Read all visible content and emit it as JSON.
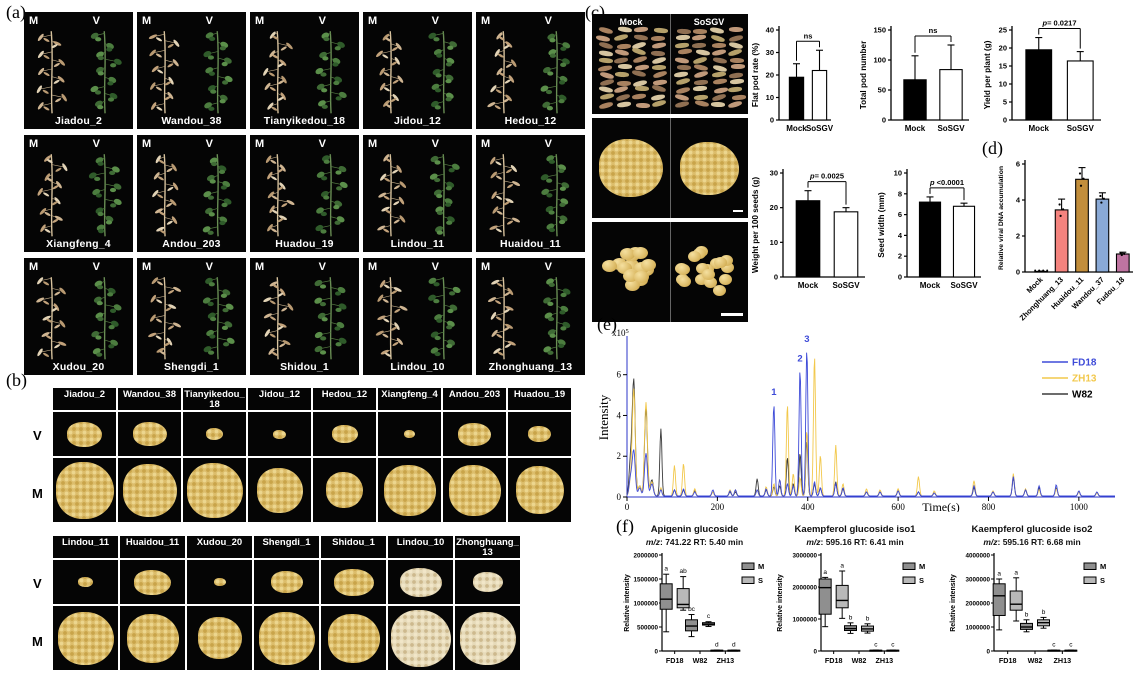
{
  "figure": {
    "panel_labels": {
      "a": "(a)",
      "b": "(b)",
      "c": "(c)",
      "d": "(d)",
      "e": "(e)",
      "f": "(f)"
    }
  },
  "panel_a": {
    "tile_labels": {
      "left": "M",
      "right": "V"
    },
    "rows": [
      [
        "Jiadou_2",
        "Wandou_38",
        "Tianyikedou_18",
        "Jidou_12",
        "Hedou_12"
      ],
      [
        "Xiangfeng_4",
        "Andou_203",
        "Huadou_19",
        "Lindou_11",
        "Huaidou_11"
      ],
      [
        "Xudou_20",
        "Shengdi_1",
        "Shidou_1",
        "Lindou_10",
        "Zhonghuang_13"
      ]
    ]
  },
  "panel_b": {
    "row_labels": [
      "V",
      "M"
    ],
    "blocks": [
      {
        "cultivars": [
          "Jiadou_2",
          "Wandou_38",
          "Tianyikedou_18",
          "Jidou_12",
          "Hedou_12",
          "Xiangfeng_4",
          "Andou_203",
          "Huadou_19"
        ],
        "v_scale": [
          0.62,
          0.6,
          0.3,
          0.22,
          0.45,
          0.2,
          0.58,
          0.4
        ],
        "m_scale": [
          0.98,
          0.92,
          0.95,
          0.78,
          0.62,
          0.88,
          0.88,
          0.82
        ],
        "v_tone": [
          "gold",
          "gold",
          "gold",
          "gold",
          "gold",
          "gold",
          "gold",
          "gold"
        ],
        "m_tone": [
          "gold",
          "gold",
          "gold",
          "gold",
          "gold",
          "gold",
          "gold",
          "gold"
        ]
      },
      {
        "cultivars": [
          "Lindou_11",
          "Huaidou_11",
          "Xudou_20",
          "Shengdi_1",
          "Shidou_1",
          "Lindou_10",
          "Zhonghuang_13"
        ],
        "v_scale": [
          0.25,
          0.62,
          0.2,
          0.55,
          0.68,
          0.72,
          0.5
        ],
        "m_scale": [
          0.92,
          0.85,
          0.72,
          0.92,
          0.85,
          0.98,
          0.92
        ],
        "v_tone": [
          "gold",
          "gold",
          "gold",
          "gold",
          "gold",
          "pale",
          "pale"
        ],
        "m_tone": [
          "gold",
          "gold",
          "gold",
          "gold",
          "gold",
          "pale",
          "pale"
        ]
      }
    ]
  },
  "panel_c": {
    "image_labels": [
      "Mock",
      "SoSGV"
    ]
  },
  "chart_data": [
    {
      "id": "flat_pod_rate",
      "type": "bar",
      "ylabel": "Flat pod rate (%)",
      "categories": [
        "Mock",
        "SoSGV"
      ],
      "values": [
        19,
        22
      ],
      "errors": [
        6,
        9
      ],
      "ylim": [
        0,
        40
      ],
      "yticks": [
        0,
        10,
        20,
        30,
        40
      ],
      "sig": "ns",
      "bar_colors": [
        "#000000",
        "#ffffff"
      ]
    },
    {
      "id": "total_pod_number",
      "type": "bar",
      "ylabel": "Total pod number",
      "categories": [
        "Mock",
        "SoSGV"
      ],
      "values": [
        67,
        84
      ],
      "errors": [
        40,
        41
      ],
      "ylim": [
        0,
        150
      ],
      "yticks": [
        0,
        50,
        100,
        150
      ],
      "sig": "ns",
      "bar_colors": [
        "#000000",
        "#ffffff"
      ]
    },
    {
      "id": "yield_per_plant",
      "type": "bar",
      "ylabel": "Yield per plant (g)",
      "categories": [
        "Mock",
        "SoSGV"
      ],
      "values": [
        19.5,
        16.4
      ],
      "errors": [
        3.4,
        2.6
      ],
      "ylim": [
        0,
        25
      ],
      "yticks": [
        0,
        5,
        10,
        15,
        20,
        25
      ],
      "sig": "p= 0.0217",
      "bar_colors": [
        "#000000",
        "#ffffff"
      ]
    },
    {
      "id": "weight_per_100_seeds",
      "type": "bar",
      "ylabel": "Weight per 100 seeds (g)",
      "categories": [
        "Mock",
        "SoSGV"
      ],
      "values": [
        22,
        18.8
      ],
      "errors": [
        2.9,
        1.2
      ],
      "ylim": [
        0,
        30
      ],
      "yticks": [
        0,
        10,
        20,
        30
      ],
      "sig": "p= 0.0025",
      "bar_colors": [
        "#000000",
        "#ffffff"
      ]
    },
    {
      "id": "seed_width",
      "type": "bar",
      "ylabel": "Seed width (mm)",
      "categories": [
        "Mock",
        "SoSGV"
      ],
      "values": [
        7.2,
        6.8
      ],
      "errors": [
        0.5,
        0.3
      ],
      "ylim": [
        0,
        10
      ],
      "yticks": [
        0,
        2,
        4,
        6,
        8,
        10
      ],
      "sig": "p <0.0001",
      "bar_colors": [
        "#000000",
        "#ffffff"
      ]
    },
    {
      "id": "viral_dna",
      "type": "bar",
      "ylabel": "Relative viral DNA accumulation",
      "categories": [
        "Mock",
        "Zhonghuang_13",
        "Huaidou_11",
        "Wandou_37",
        "Fudou_18"
      ],
      "values": [
        0.03,
        3.45,
        5.15,
        4.05,
        1.0
      ],
      "errors": [
        0.02,
        0.6,
        0.65,
        0.35,
        0.1
      ],
      "ylim": [
        0,
        6
      ],
      "yticks": [
        0,
        2,
        4,
        6
      ],
      "bar_colors": [
        "#222222",
        "#F4837E",
        "#C28E3C",
        "#89A9D6",
        "#BF74A1"
      ],
      "rotate_labels": true,
      "dots": true,
      "err_both": true
    },
    {
      "id": "chromatogram",
      "type": "line",
      "xlabel": "Time(s)",
      "ylabel": "Intensity",
      "y_scale_label": "x10",
      "y_scale_exp": "5",
      "xlim": [
        0,
        1080
      ],
      "xticks": [
        0,
        200,
        400,
        600,
        800,
        1000
      ],
      "ylim": [
        0,
        7.8
      ],
      "yticks": [
        0,
        2,
        4,
        6
      ],
      "series": [
        {
          "name": "FD18",
          "color": "#3E4BD8"
        },
        {
          "name": "ZH13",
          "color": "#F2C84B"
        },
        {
          "name": "W82",
          "color": "#3B3B3B"
        }
      ],
      "peaks": [
        [
          8,
          0.9,
          0.7,
          1.8
        ],
        [
          15,
          2.2,
          5.2,
          5.6
        ],
        [
          28,
          0.4,
          0.5,
          0.5
        ],
        [
          42,
          2.1,
          4.6,
          4.3
        ],
        [
          55,
          0.6,
          0.7,
          0.8
        ],
        [
          75,
          0.3,
          0.4,
          3.3
        ],
        [
          105,
          0.3,
          1.5,
          0.3
        ],
        [
          125,
          0.35,
          1.6,
          0.3
        ],
        [
          150,
          0.2,
          0.35,
          0.25
        ],
        [
          190,
          0.3,
          0.2,
          0.2
        ],
        [
          228,
          0.25,
          0.3,
          0.2
        ],
        [
          240,
          0.3,
          0.3,
          0.2
        ],
        [
          288,
          0.3,
          0.3,
          0.85
        ],
        [
          308,
          0.35,
          0.45,
          0.3
        ],
        [
          325,
          4.5,
          0.6,
          0.45
        ],
        [
          338,
          0.8,
          0.8,
          0.5
        ],
        [
          355,
          0.6,
          4.5,
          1.9
        ],
        [
          368,
          0.5,
          1.1,
          0.6
        ],
        [
          383,
          6.2,
          0.9,
          2.1
        ],
        [
          398,
          7.2,
          3.2,
          2.7
        ],
        [
          415,
          0.7,
          6.9,
          0.6
        ],
        [
          428,
          0.4,
          2.0,
          0.4
        ],
        [
          462,
          0.6,
          2.5,
          0.7
        ],
        [
          478,
          0.4,
          0.6,
          0.35
        ],
        [
          530,
          0.2,
          0.35,
          0.2
        ],
        [
          560,
          0.2,
          0.3,
          0.2
        ],
        [
          600,
          0.25,
          0.35,
          0.25
        ],
        [
          645,
          0.2,
          0.95,
          0.2
        ],
        [
          680,
          0.15,
          0.25,
          0.15
        ],
        [
          768,
          0.5,
          0.75,
          0.4
        ],
        [
          810,
          0.2,
          0.25,
          0.2
        ],
        [
          855,
          0.95,
          1.1,
          0.9
        ],
        [
          882,
          0.3,
          0.35,
          0.3
        ],
        [
          912,
          0.5,
          0.3,
          0.4
        ],
        [
          950,
          0.55,
          0.35,
          0.4
        ],
        [
          1000,
          0.25,
          0.2,
          0.2
        ],
        [
          1040,
          0.2,
          0.15,
          0.15
        ]
      ],
      "peak_labels": [
        {
          "label": "1",
          "t": 325,
          "y": 4.9
        },
        {
          "label": "2",
          "t": 383,
          "y": 6.55
        },
        {
          "label": "3",
          "t": 398,
          "y": 7.5
        }
      ]
    },
    {
      "id": "apigenin",
      "type": "box",
      "title": "Apigenin glucoside",
      "sub_italic": "m/z",
      "sub_rest": ": 741.22  RT: 5.40 min",
      "ylabel": "Relative intensity",
      "ylim": [
        0,
        2000000
      ],
      "yticks": [
        0,
        500000,
        1000000,
        1500000,
        2000000
      ],
      "groups": [
        "FD18",
        "W82",
        "ZH13"
      ],
      "series": [
        "M",
        "S"
      ],
      "series_colors": [
        "#8f8f8f",
        "#b9b9b9"
      ],
      "boxes": [
        [
          {
            "lo": 400000,
            "q1": 870000,
            "med": 1080000,
            "q3": 1400000,
            "hi": 1600000,
            "letter": "a"
          },
          {
            "lo": 850000,
            "q1": 900000,
            "med": 970000,
            "q3": 1300000,
            "hi": 1550000,
            "letter": "ab"
          }
        ],
        [
          {
            "lo": 300000,
            "q1": 420000,
            "med": 520000,
            "q3": 650000,
            "hi": 760000,
            "letter": "bc"
          },
          {
            "lo": 510000,
            "q1": 540000,
            "med": 560000,
            "q3": 590000,
            "hi": 610000,
            "letter": "c"
          }
        ],
        [
          {
            "lo": 5000,
            "q1": 8000,
            "med": 12000,
            "q3": 16000,
            "hi": 20000,
            "letter": "d"
          },
          {
            "lo": 5000,
            "q1": 8000,
            "med": 12000,
            "q3": 16000,
            "hi": 20000,
            "letter": "d"
          }
        ]
      ]
    },
    {
      "id": "kaempferol_iso1",
      "type": "box",
      "title": "Kaempferol glucoside iso1",
      "sub_italic": "m/z",
      "sub_rest": ": 595.16  RT: 6.41 min",
      "ylabel": "Relative intensity",
      "ylim": [
        0,
        3000000
      ],
      "yticks": [
        0,
        1000000,
        2000000,
        3000000
      ],
      "groups": [
        "FD18",
        "W82",
        "ZH13"
      ],
      "series": [
        "M",
        "S"
      ],
      "series_colors": [
        "#8f8f8f",
        "#b9b9b9"
      ],
      "boxes": [
        [
          {
            "lo": 760000,
            "q1": 1150000,
            "med": 1980000,
            "q3": 2250000,
            "hi": 2300000,
            "letter": "a"
          },
          {
            "lo": 1020000,
            "q1": 1350000,
            "med": 1580000,
            "q3": 2050000,
            "hi": 2500000,
            "letter": "a"
          }
        ],
        [
          {
            "lo": 550000,
            "q1": 640000,
            "med": 700000,
            "q3": 790000,
            "hi": 880000,
            "letter": "b"
          },
          {
            "lo": 560000,
            "q1": 620000,
            "med": 690000,
            "q3": 780000,
            "hi": 850000,
            "letter": "b"
          }
        ],
        [
          {
            "lo": 8000,
            "q1": 12000,
            "med": 18000,
            "q3": 24000,
            "hi": 30000,
            "letter": "c"
          },
          {
            "lo": 8000,
            "q1": 12000,
            "med": 18000,
            "q3": 24000,
            "hi": 30000,
            "letter": "c"
          }
        ]
      ]
    },
    {
      "id": "kaempferol_iso2",
      "type": "box",
      "title": "Kaempferol glucoside iso2",
      "sub_italic": "m/z",
      "sub_rest": ": 595.16  RT: 6.68 min",
      "ylabel": "Relative intensity",
      "ylim": [
        0,
        4000000
      ],
      "yticks": [
        0,
        1000000,
        2000000,
        3000000,
        4000000
      ],
      "groups": [
        "FD18",
        "W82",
        "ZH13"
      ],
      "series": [
        "M",
        "S"
      ],
      "series_colors": [
        "#8f8f8f",
        "#b9b9b9"
      ],
      "boxes": [
        [
          {
            "lo": 880000,
            "q1": 1480000,
            "med": 2300000,
            "q3": 2800000,
            "hi": 3000000,
            "letter": "a"
          },
          {
            "lo": 1250000,
            "q1": 1700000,
            "med": 1950000,
            "q3": 2500000,
            "hi": 3050000,
            "letter": "a"
          }
        ],
        [
          {
            "lo": 800000,
            "q1": 900000,
            "med": 1000000,
            "q3": 1150000,
            "hi": 1300000,
            "letter": "b"
          },
          {
            "lo": 950000,
            "q1": 1050000,
            "med": 1180000,
            "q3": 1300000,
            "hi": 1400000,
            "letter": "b"
          }
        ],
        [
          {
            "lo": 10000,
            "q1": 16000,
            "med": 24000,
            "q3": 32000,
            "hi": 40000,
            "letter": "c"
          },
          {
            "lo": 10000,
            "q1": 16000,
            "med": 24000,
            "q3": 32000,
            "hi": 40000,
            "letter": "c"
          }
        ]
      ]
    }
  ]
}
